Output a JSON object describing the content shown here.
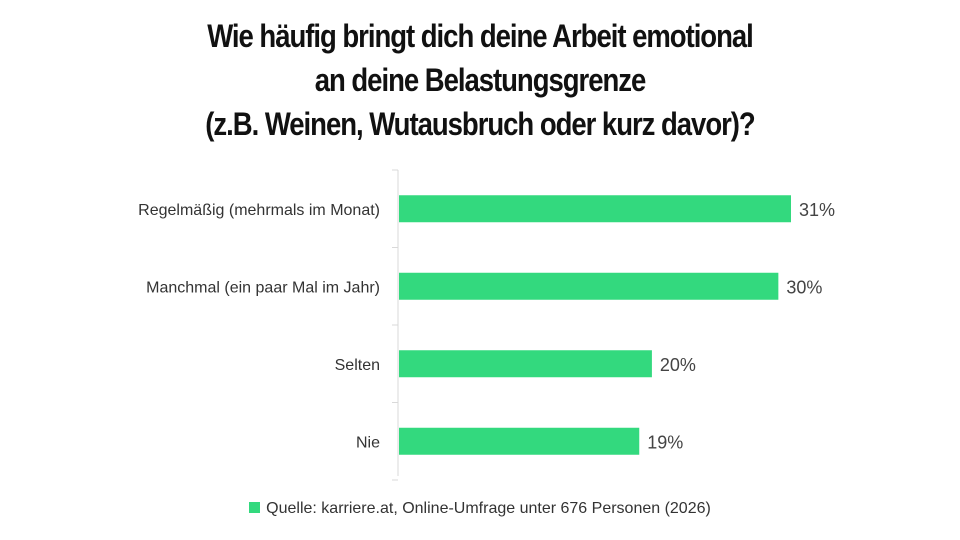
{
  "title_lines": [
    "Wie häufig bringt dich deine Arbeit emotional",
    "an deine Belastungsgrenze",
    "(z.B. Weinen, Wutausbruch oder kurz davor)?"
  ],
  "legend_label": "Quelle: karriere.at, Online-Umfrage unter 676 Personen (2026)",
  "colors": {
    "bar": "#33d97e",
    "axis": "#d9d9d9"
  },
  "chart_data": {
    "type": "bar",
    "orientation": "horizontal",
    "title": "Wie häufig bringt dich deine Arbeit emotional an deine Belastungsgrenze (z.B. Weinen, Wutausbruch oder kurz davor)?",
    "categories": [
      "Regelmäßig (mehrmals im Monat)",
      "Manchmal (ein paar Mal im Jahr)",
      "Selten",
      "Nie"
    ],
    "series": [
      {
        "name": "Quelle: karriere.at, Online-Umfrage unter 676 Personen (2026)",
        "values": [
          31,
          30,
          20,
          19
        ]
      }
    ],
    "value_labels": [
      "31%",
      "30%",
      "20%",
      "19%"
    ],
    "xlim": [
      0,
      35
    ],
    "grid": false,
    "legend_position": "bottom"
  }
}
